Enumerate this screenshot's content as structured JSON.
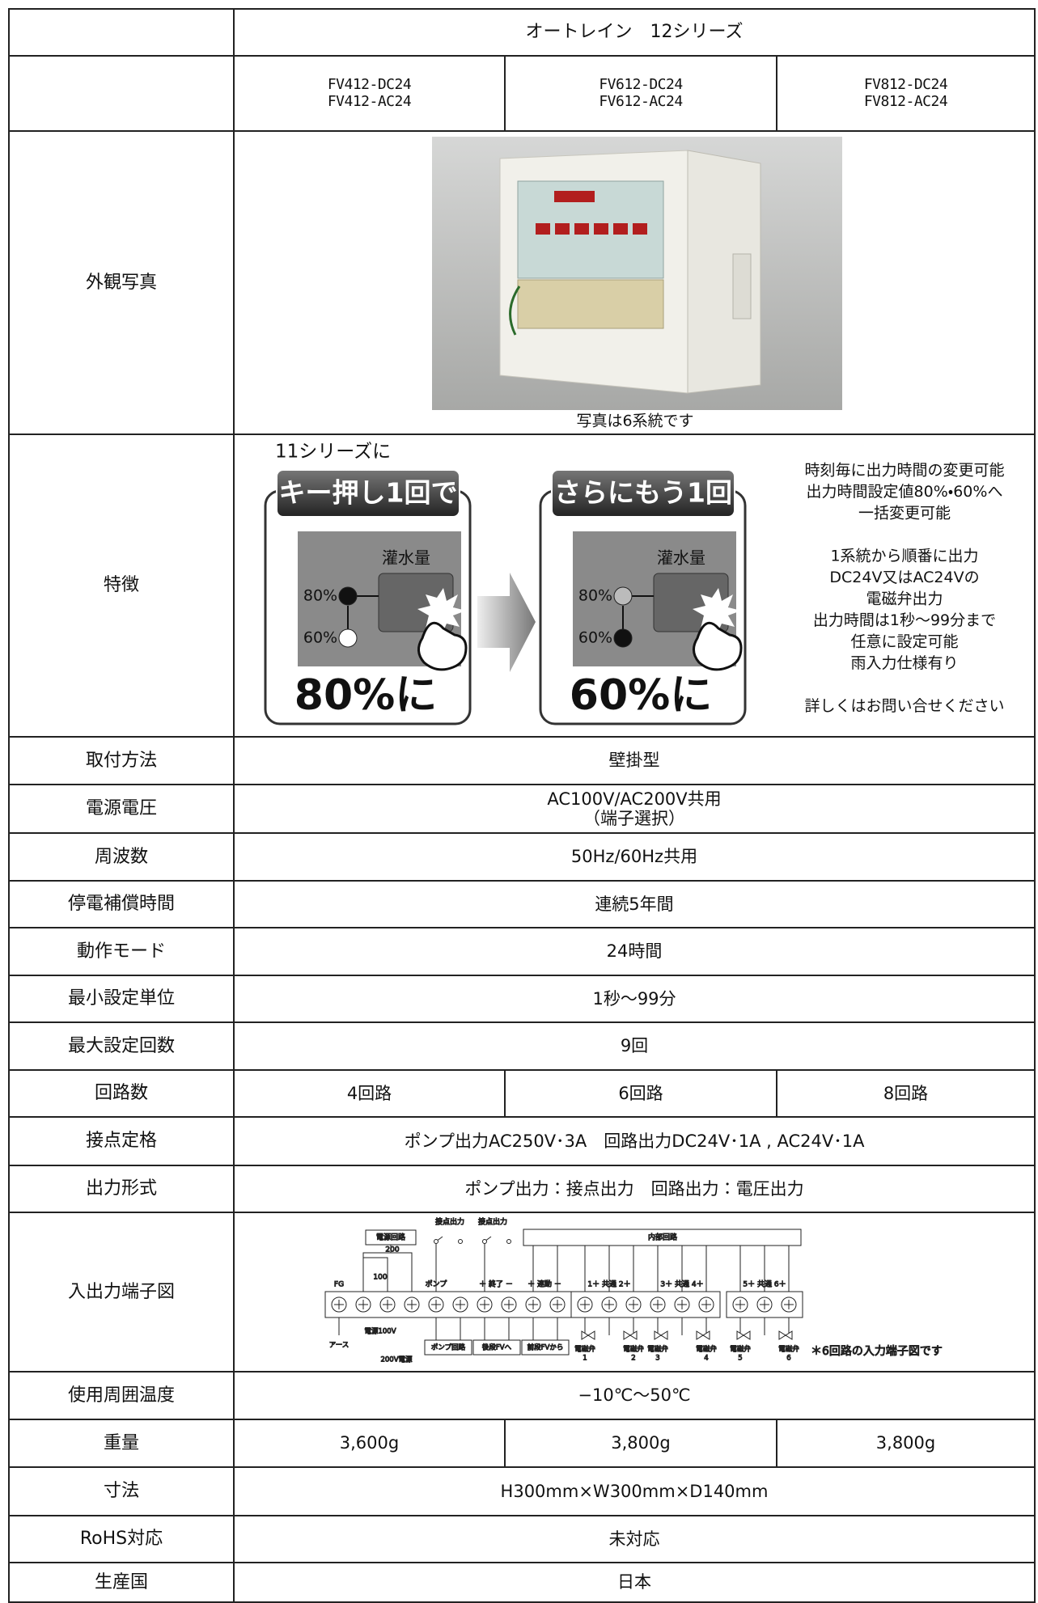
{
  "header": {
    "title": "オートレイン　12シリーズ",
    "models": [
      [
        "FV412-DC24",
        "FV412-AC24"
      ],
      [
        "FV612-DC24",
        "FV612-AC24"
      ],
      [
        "FV812-DC24",
        "FV812-AC24"
      ]
    ]
  },
  "photo": {
    "label": "外観写真",
    "caption": "写真は6系統です"
  },
  "features": {
    "label": "特徴",
    "intro": "11シリーズに",
    "panels": [
      {
        "banner": "キー押し1回で",
        "button": "灌水量",
        "levels": [
          "80%",
          "60%"
        ],
        "result": "80%に"
      },
      {
        "banner": "さらにもう1回",
        "button": "灌水量",
        "levels": [
          "80%",
          "60%"
        ],
        "result": "60%に"
      }
    ],
    "notes": [
      [
        "時刻毎に出力時間の変更可能",
        "出力時間設定値80%・60%へ",
        "一括変更可能"
      ],
      [
        "1系統から順番に出力",
        "DC24V又はAC24Vの",
        "電磁弁出力",
        "出力時間は1秒～99分まで",
        "任意に設定可能",
        "雨入力仕様有り"
      ],
      [
        "詳しくはお問い合せください"
      ]
    ]
  },
  "rows": [
    {
      "label": "取付方法",
      "cells": [
        "壁掛型"
      ]
    },
    {
      "label": "電源電圧",
      "cells": [
        [
          "AC100V/AC200V共用",
          "（端子選択）"
        ]
      ]
    },
    {
      "label": "周波数",
      "cells": [
        "50Hz/60Hz共用"
      ]
    },
    {
      "label": "停電補償時間",
      "cells": [
        "連続5年間"
      ]
    },
    {
      "label": "動作モード",
      "cells": [
        "24時間"
      ]
    },
    {
      "label": "最小設定単位",
      "cells": [
        "1秒～99分"
      ]
    },
    {
      "label": "最大設定回数",
      "cells": [
        "9回"
      ]
    },
    {
      "label": "回路数",
      "cells": [
        "4回路",
        "6回路",
        "8回路"
      ]
    },
    {
      "label": "接点定格",
      "cells": [
        "ポンプ出力AC250V･3A　回路出力DC24V･1A , AC24V･1A"
      ]
    },
    {
      "label": "出力形式",
      "cells": [
        "ポンプ出力：接点出力　回路出力：電圧出力"
      ]
    },
    {
      "label": "入出力端子図",
      "diagram": {
        "top_labels": [
          "電源回路",
          "接点出力",
          "接点出力",
          "内部回路"
        ],
        "terminal_labels": [
          "FG",
          "100",
          "200",
          "ポンプ",
          "＋ 終了 －",
          "＋ 連動 －",
          "1＋ 共通 2＋",
          "3＋ 共通 4＋",
          "5＋ 共通 6＋"
        ],
        "bottom_labels": [
          "アース",
          "電源100V",
          "200V電源",
          "ポンプ回路",
          "後段FVへ",
          "前段FVから"
        ],
        "valve_label": "電磁弁",
        "valve_numbers": [
          "1",
          "2",
          "3",
          "4",
          "5",
          "6"
        ],
        "note": "＊6回路の入力端子図です"
      }
    },
    {
      "label": "使用周囲温度",
      "cells": [
        "−10℃～50℃"
      ]
    },
    {
      "label": "重量",
      "cells": [
        "3,600g",
        "3,800g",
        "3,800g"
      ]
    },
    {
      "label": "寸法",
      "cells": [
        "H300mm×W300mm×D140mm"
      ]
    },
    {
      "label": "RoHS対応",
      "cells": [
        "未対応"
      ]
    },
    {
      "label": "生産国",
      "cells": [
        "日本"
      ]
    }
  ]
}
